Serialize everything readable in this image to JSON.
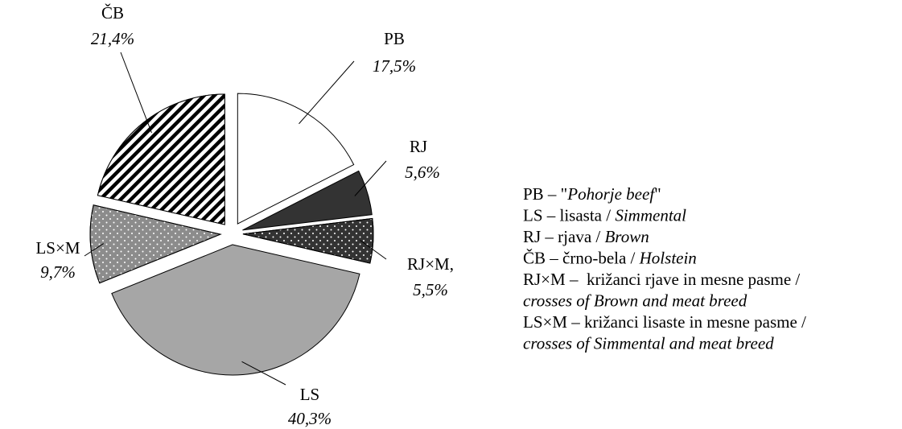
{
  "chart_data": {
    "type": "pie",
    "categories": [
      "PB",
      "RJ",
      "RJ×M,",
      "LS",
      "LS×M",
      "ČB"
    ],
    "values": [
      17.5,
      5.6,
      5.5,
      40.3,
      9.7,
      21.4
    ],
    "value_labels": [
      "17,5%",
      "5,6%",
      "5,5%",
      "40,3%",
      "9,7%",
      "21,4%"
    ],
    "colors": [
      "#ffffff",
      "#333333",
      "#333333",
      "#a6a6a6",
      "#8c8c8c",
      "#ffffff"
    ],
    "patterns": [
      "none",
      "none",
      "dots",
      "none",
      "dots",
      "stripes"
    ],
    "legend": [
      [
        {
          "text": "PB – \"",
          "italic": false
        },
        {
          "text": "Pohorje beef",
          "italic": true
        },
        {
          "text": "\"",
          "italic": false
        }
      ],
      [
        {
          "text": "LS – lisasta / ",
          "italic": false
        },
        {
          "text": "Simmental",
          "italic": true
        }
      ],
      [
        {
          "text": "RJ – rjava / ",
          "italic": false
        },
        {
          "text": "Brown",
          "italic": true
        }
      ],
      [
        {
          "text": "ČB – črno-bela / ",
          "italic": false
        },
        {
          "text": "Holstein",
          "italic": true
        }
      ],
      [
        {
          "text": "RJ×M –  križanci rjave in mesne pasme /",
          "italic": false
        }
      ],
      [
        {
          "text": "crosses of Brown and meat breed",
          "italic": true
        }
      ],
      [
        {
          "text": "LS×M – križanci lisaste in mesne pasme /",
          "italic": false
        }
      ],
      [
        {
          "text": "crosses of Simmental and meat breed",
          "italic": true
        }
      ]
    ]
  }
}
